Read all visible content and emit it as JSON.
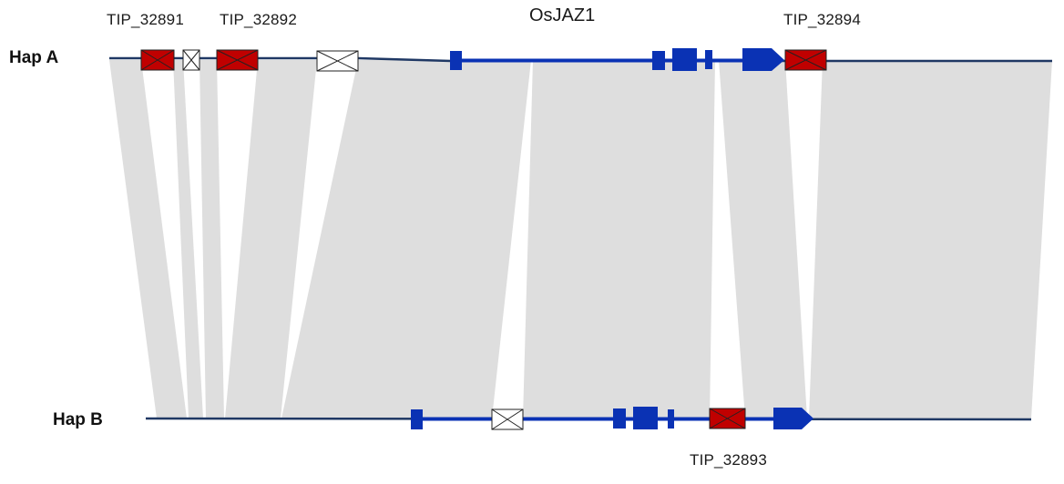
{
  "haplotypes": {
    "a_label": "Hap A",
    "b_label": "Hap B"
  },
  "gene": {
    "name": "OsJAZ1"
  },
  "te_labels": {
    "te1": "TIP_32891",
    "te2": "TIP_32892",
    "te3": "TIP_32893",
    "te4": "TIP_32894"
  },
  "colors": {
    "chromosome_line": "#1f3864",
    "gene": "#0a32b4",
    "te_red": "#c00000",
    "te_white": "#ffffff",
    "synteny": "#dedede"
  }
}
